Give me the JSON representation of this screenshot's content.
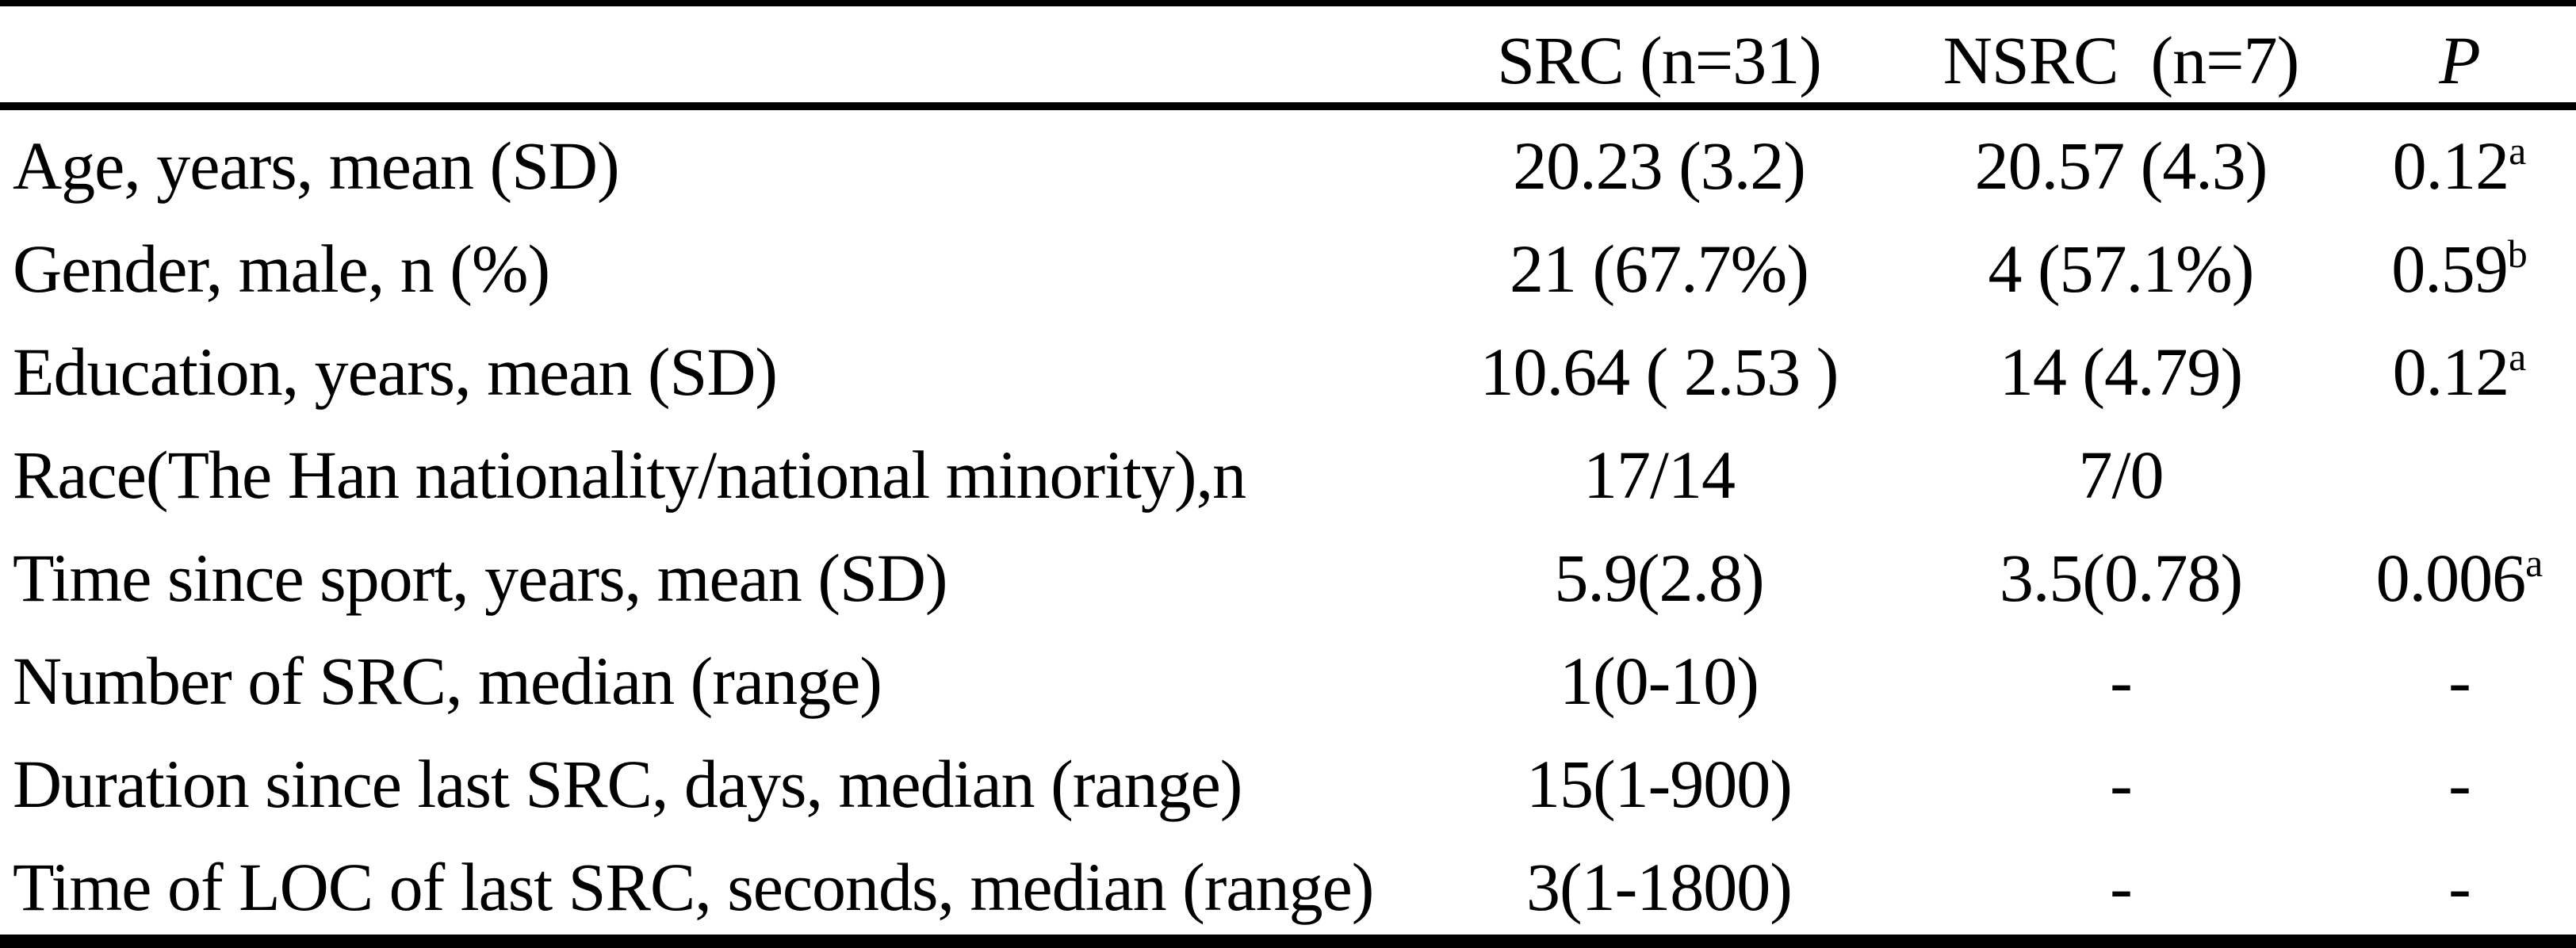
{
  "page": {
    "background": "#ffffff",
    "text_color": "#000000",
    "rule_color": "#000000"
  },
  "table": {
    "header": {
      "col_label": "",
      "col_src": "SRC (n=31)",
      "col_nsrc": "NSRC  (n=7)",
      "col_p": "P"
    },
    "rows": [
      {
        "label": "Age, years, mean (SD)",
        "src": "20.23 (3.2)",
        "nsrc": "20.57 (4.3)",
        "p": "0.12",
        "p_sup": "a"
      },
      {
        "label": "Gender, male, n (%)",
        "src": "21 (67.7%)",
        "nsrc": "4 (57.1%)",
        "p": "0.59",
        "p_sup": "b"
      },
      {
        "label": "Education, years, mean (SD)",
        "src": "10.64 ( 2.53 )",
        "nsrc": "14 (4.79)",
        "p": "0.12",
        "p_sup": "a"
      },
      {
        "label": "Race(The Han nationality/national minority),n",
        "src": "17/14",
        "nsrc": "7/0",
        "p": "",
        "p_sup": ""
      },
      {
        "label": "Time since sport, years, mean (SD)",
        "src": "5.9(2.8)",
        "nsrc": "3.5(0.78)",
        "p": "0.006",
        "p_sup": "a"
      },
      {
        "label": "Number of SRC, median (range)",
        "src": "1(0-10)",
        "nsrc": "-",
        "p": "-",
        "p_sup": ""
      },
      {
        "label": "Duration since last SRC, days, median (range)",
        "src": "15(1-900)",
        "nsrc": "-",
        "p": "-",
        "p_sup": ""
      },
      {
        "label": "Time of LOC of last SRC, seconds, median (range)",
        "src": "3(1-1800)",
        "nsrc": "-",
        "p": "-",
        "p_sup": ""
      }
    ]
  }
}
